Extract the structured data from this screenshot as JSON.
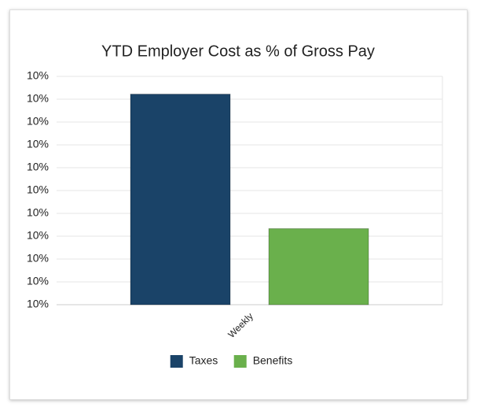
{
  "chart_data": {
    "type": "bar",
    "title": "YTD Employer Cost as % of Gross Pay",
    "categories": [
      "Weekly"
    ],
    "series": [
      {
        "name": "Taxes",
        "color": "#1a4368",
        "values": [
          10.38
        ]
      },
      {
        "name": "Benefits",
        "color": "#6ab04c",
        "values": [
          9.85
        ]
      }
    ],
    "ylim": [
      9.55,
      10.45
    ],
    "yticks": [
      {
        "value": 9.55,
        "label": "10%"
      },
      {
        "value": 9.64,
        "label": "10%"
      },
      {
        "value": 9.73,
        "label": "10%"
      },
      {
        "value": 9.82,
        "label": "10%"
      },
      {
        "value": 9.91,
        "label": "10%"
      },
      {
        "value": 10.0,
        "label": "10%"
      },
      {
        "value": 10.09,
        "label": "10%"
      },
      {
        "value": 10.18,
        "label": "10%"
      },
      {
        "value": 10.27,
        "label": "10%"
      },
      {
        "value": 10.36,
        "label": "10%"
      },
      {
        "value": 10.45,
        "label": "10%"
      }
    ],
    "grid": true
  }
}
